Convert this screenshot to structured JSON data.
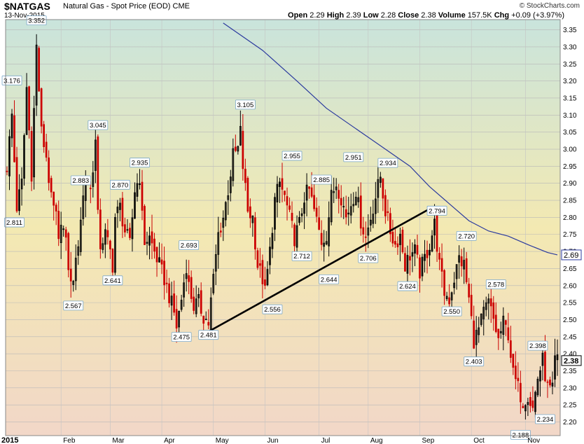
{
  "header": {
    "symbol": "$NATGAS",
    "description": "Natural Gas - Spot Price (EOD)",
    "exchange": "CME",
    "date": "13-Nov-2015",
    "credit": "© StockCharts.com",
    "open_label": "Open",
    "open": "2.29",
    "high_label": "High",
    "high": "2.39",
    "low_label": "Low",
    "low": "2.28",
    "close_label": "Close",
    "close": "2.38",
    "volume_label": "Volume",
    "volume": "157.5K",
    "chg_label": "Chg",
    "chg": "+0.09 (+3.97%)"
  },
  "chart_data": {
    "type": "candlestick",
    "ylim": [
      2.16,
      3.38
    ],
    "yticks": [
      "3.35",
      "3.30",
      "3.25",
      "3.20",
      "3.15",
      "3.10",
      "3.05",
      "3.00",
      "2.95",
      "2.90",
      "2.85",
      "2.80",
      "2.75",
      "2.70",
      "2.65",
      "2.60",
      "2.55",
      "2.50",
      "2.45",
      "2.40",
      "2.35",
      "2.30",
      "2.25",
      "2.20"
    ],
    "x_labels": [
      {
        "label": "2015",
        "x": 0
      },
      {
        "label": "Feb",
        "x": 22
      },
      {
        "label": "Mar",
        "x": 42
      },
      {
        "label": "Apr",
        "x": 63
      },
      {
        "label": "May",
        "x": 84
      },
      {
        "label": "Jun",
        "x": 105
      },
      {
        "label": "Jul",
        "x": 127
      },
      {
        "label": "Aug",
        "x": 147
      },
      {
        "label": "Sep",
        "x": 168
      },
      {
        "label": "Oct",
        "x": 189
      },
      {
        "label": "Nov",
        "x": 211
      }
    ],
    "close_series": [
      [
        0,
        2.95
      ],
      [
        2,
        3.1
      ],
      [
        4,
        2.83
      ],
      [
        6,
        2.9
      ],
      [
        8,
        3.18
      ],
      [
        10,
        2.93
      ],
      [
        12,
        3.3
      ],
      [
        14,
        3.05
      ],
      [
        16,
        2.98
      ],
      [
        18,
        2.85
      ],
      [
        20,
        2.8
      ],
      [
        21,
        2.72
      ],
      [
        22,
        2.8
      ],
      [
        24,
        2.72
      ],
      [
        26,
        2.6
      ],
      [
        28,
        2.66
      ],
      [
        30,
        2.8
      ],
      [
        32,
        2.92
      ],
      [
        34,
        2.88
      ],
      [
        36,
        3.02
      ],
      [
        37,
        2.8
      ],
      [
        38,
        2.72
      ],
      [
        40,
        2.75
      ],
      [
        42,
        2.7
      ],
      [
        43,
        2.66
      ],
      [
        44,
        2.8
      ],
      [
        46,
        2.83
      ],
      [
        48,
        2.76
      ],
      [
        50,
        2.72
      ],
      [
        52,
        2.88
      ],
      [
        54,
        2.92
      ],
      [
        55,
        2.8
      ],
      [
        56,
        2.73
      ],
      [
        58,
        2.74
      ],
      [
        60,
        2.7
      ],
      [
        62,
        2.66
      ],
      [
        64,
        2.62
      ],
      [
        66,
        2.57
      ],
      [
        68,
        2.52
      ],
      [
        69,
        2.48
      ],
      [
        71,
        2.56
      ],
      [
        73,
        2.66
      ],
      [
        74,
        2.6
      ],
      [
        76,
        2.54
      ],
      [
        78,
        2.55
      ],
      [
        80,
        2.51
      ],
      [
        82,
        2.49
      ],
      [
        84,
        2.62
      ],
      [
        86,
        2.75
      ],
      [
        88,
        2.8
      ],
      [
        90,
        2.88
      ],
      [
        92,
        2.98
      ],
      [
        94,
        3.0
      ],
      [
        95,
        3.05
      ],
      [
        96,
        2.95
      ],
      [
        98,
        2.82
      ],
      [
        100,
        2.8
      ],
      [
        102,
        2.66
      ],
      [
        104,
        2.62
      ],
      [
        105,
        2.58
      ],
      [
        107,
        2.7
      ],
      [
        109,
        2.85
      ],
      [
        111,
        2.9
      ],
      [
        113,
        2.86
      ],
      [
        115,
        2.8
      ],
      [
        117,
        2.74
      ],
      [
        119,
        2.78
      ],
      [
        121,
        2.86
      ],
      [
        123,
        2.88
      ],
      [
        125,
        2.82
      ],
      [
        127,
        2.76
      ],
      [
        128,
        2.73
      ],
      [
        130,
        2.75
      ],
      [
        132,
        2.86
      ],
      [
        134,
        2.9
      ],
      [
        136,
        2.86
      ],
      [
        138,
        2.8
      ],
      [
        140,
        2.84
      ],
      [
        142,
        2.88
      ],
      [
        144,
        2.79
      ],
      [
        146,
        2.74
      ],
      [
        148,
        2.8
      ],
      [
        150,
        2.86
      ],
      [
        152,
        2.92
      ],
      [
        154,
        2.82
      ],
      [
        156,
        2.76
      ],
      [
        158,
        2.72
      ],
      [
        160,
        2.75
      ],
      [
        162,
        2.66
      ],
      [
        164,
        2.69
      ],
      [
        166,
        2.7
      ],
      [
        168,
        2.64
      ],
      [
        170,
        2.68
      ],
      [
        172,
        2.72
      ],
      [
        174,
        2.78
      ],
      [
        176,
        2.66
      ],
      [
        178,
        2.58
      ],
      [
        180,
        2.56
      ],
      [
        182,
        2.62
      ],
      [
        184,
        2.68
      ],
      [
        186,
        2.66
      ],
      [
        188,
        2.56
      ],
      [
        190,
        2.44
      ],
      [
        192,
        2.47
      ],
      [
        194,
        2.52
      ],
      [
        196,
        2.55
      ],
      [
        198,
        2.5
      ],
      [
        200,
        2.44
      ],
      [
        202,
        2.49
      ],
      [
        204,
        2.46
      ],
      [
        206,
        2.34
      ],
      [
        208,
        2.3
      ],
      [
        210,
        2.26
      ],
      [
        212,
        2.28
      ],
      [
        214,
        2.24
      ],
      [
        216,
        2.33
      ],
      [
        218,
        2.38
      ],
      [
        220,
        2.3
      ],
      [
        222,
        2.29
      ],
      [
        223,
        2.38
      ]
    ],
    "moving_average": [
      [
        88,
        3.37
      ],
      [
        104,
        3.29
      ],
      [
        118,
        3.2
      ],
      [
        130,
        3.12
      ],
      [
        140,
        3.07
      ],
      [
        148,
        3.03
      ],
      [
        156,
        2.99
      ],
      [
        164,
        2.95
      ],
      [
        172,
        2.89
      ],
      [
        180,
        2.84
      ],
      [
        188,
        2.79
      ],
      [
        196,
        2.76
      ],
      [
        204,
        2.745
      ],
      [
        212,
        2.72
      ],
      [
        220,
        2.697
      ],
      [
        224,
        2.69
      ]
    ],
    "trendline": [
      [
        82,
        2.465
      ],
      [
        172,
        2.825
      ]
    ],
    "annotations": [
      {
        "label": "3.352",
        "x": 12,
        "y": 3.352,
        "pos": "above"
      },
      {
        "label": "3.176",
        "x": 2,
        "y": 3.176,
        "pos": "above"
      },
      {
        "label": "2.811",
        "x": 3,
        "y": 2.811,
        "pos": "below"
      },
      {
        "label": "3.045",
        "x": 37,
        "y": 3.045,
        "pos": "above"
      },
      {
        "label": "2.883",
        "x": 30,
        "y": 2.883,
        "pos": "above"
      },
      {
        "label": "2.870",
        "x": 46,
        "y": 2.87,
        "pos": "above"
      },
      {
        "label": "2.935",
        "x": 54,
        "y": 2.935,
        "pos": "above"
      },
      {
        "label": "2.567",
        "x": 27,
        "y": 2.567,
        "pos": "below"
      },
      {
        "label": "2.641",
        "x": 43,
        "y": 2.641,
        "pos": "below"
      },
      {
        "label": "2.693",
        "x": 74,
        "y": 2.693,
        "pos": "above"
      },
      {
        "label": "2.475",
        "x": 71,
        "y": 2.475,
        "pos": "below"
      },
      {
        "label": "2.481",
        "x": 82,
        "y": 2.481,
        "pos": "below"
      },
      {
        "label": "3.105",
        "x": 97,
        "y": 3.105,
        "pos": "above"
      },
      {
        "label": "2.556",
        "x": 108,
        "y": 2.556,
        "pos": "below"
      },
      {
        "label": "2.955",
        "x": 116,
        "y": 2.955,
        "pos": "above"
      },
      {
        "label": "2.885",
        "x": 128,
        "y": 2.885,
        "pos": "above"
      },
      {
        "label": "2.712",
        "x": 120,
        "y": 2.712,
        "pos": "below"
      },
      {
        "label": "2.644",
        "x": 131,
        "y": 2.644,
        "pos": "below"
      },
      {
        "label": "2.951",
        "x": 141,
        "y": 2.951,
        "pos": "above"
      },
      {
        "label": "2.706",
        "x": 147,
        "y": 2.706,
        "pos": "below"
      },
      {
        "label": "2.934",
        "x": 155,
        "y": 2.934,
        "pos": "above"
      },
      {
        "label": "2.624",
        "x": 163,
        "y": 2.624,
        "pos": "below"
      },
      {
        "label": "2.794",
        "x": 175,
        "y": 2.794,
        "pos": "above"
      },
      {
        "label": "2.720",
        "x": 187,
        "y": 2.72,
        "pos": "above"
      },
      {
        "label": "2.550",
        "x": 181,
        "y": 2.55,
        "pos": "below"
      },
      {
        "label": "2.578",
        "x": 199,
        "y": 2.578,
        "pos": "above"
      },
      {
        "label": "2.403",
        "x": 190,
        "y": 2.403,
        "pos": "below"
      },
      {
        "label": "2.398",
        "x": 216,
        "y": 2.398,
        "pos": "above"
      },
      {
        "label": "2.188",
        "x": 209,
        "y": 2.188,
        "pos": "below"
      },
      {
        "label": "2.234",
        "x": 219,
        "y": 2.234,
        "pos": "below"
      }
    ],
    "last_value_label": "2.38",
    "ma_value_label": "2.69",
    "last_value": 2.38,
    "ma_last_value": 2.69,
    "colors": {
      "up": "#000000",
      "down": "#cc0000",
      "moving_average": "#2b3a9e",
      "trendline": "#000000",
      "bg_top": "#c9e4dc",
      "bg_mid": "#f3e9b2",
      "bg_bottom": "#f2d7c8"
    }
  }
}
